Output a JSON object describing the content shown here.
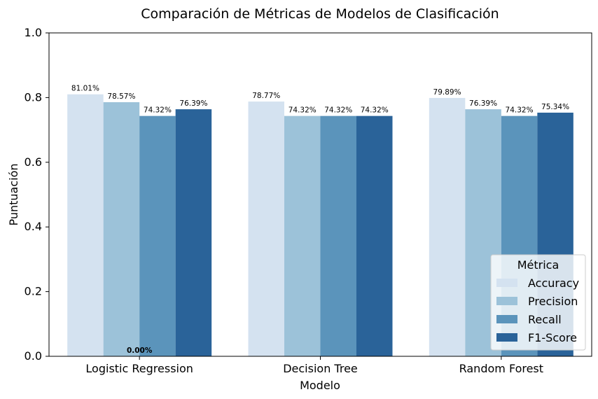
{
  "chart_data": {
    "type": "bar",
    "title": "Comparación de Métricas de Modelos de Clasificación",
    "xlabel": "Modelo",
    "ylabel": "Puntuación",
    "ylim": [
      0,
      1
    ],
    "yticks": [
      "0.0",
      "0.2",
      "0.4",
      "0.6",
      "0.8",
      "1.0"
    ],
    "categories": [
      "Logistic Regression",
      "Decision Tree",
      "Random Forest"
    ],
    "series": [
      {
        "name": "Accuracy",
        "color": "#d4e2f0",
        "values": [
          0.8101,
          0.7877,
          0.7989
        ],
        "labels": [
          "81.01%",
          "78.77%",
          "79.89%"
        ]
      },
      {
        "name": "Precision",
        "color": "#9cc2d9",
        "values": [
          0.7857,
          0.7432,
          0.7639
        ],
        "labels": [
          "78.57%",
          "74.32%",
          "76.39%"
        ]
      },
      {
        "name": "Recall",
        "color": "#5b94bb",
        "values": [
          0.7432,
          0.7432,
          0.7432
        ],
        "labels": [
          "74.32%",
          "74.32%",
          "74.32%"
        ]
      },
      {
        "name": "F1-Score",
        "color": "#2a6399",
        "values": [
          0.7639,
          0.7432,
          0.7534
        ],
        "labels": [
          "76.39%",
          "74.32%",
          "75.34%"
        ]
      }
    ],
    "extra_annotation": {
      "text": "0.00%",
      "value": 0,
      "category": "Logistic Regression"
    },
    "legend": {
      "title": "Métrica",
      "placement": "bottom-right"
    },
    "grid": false
  }
}
